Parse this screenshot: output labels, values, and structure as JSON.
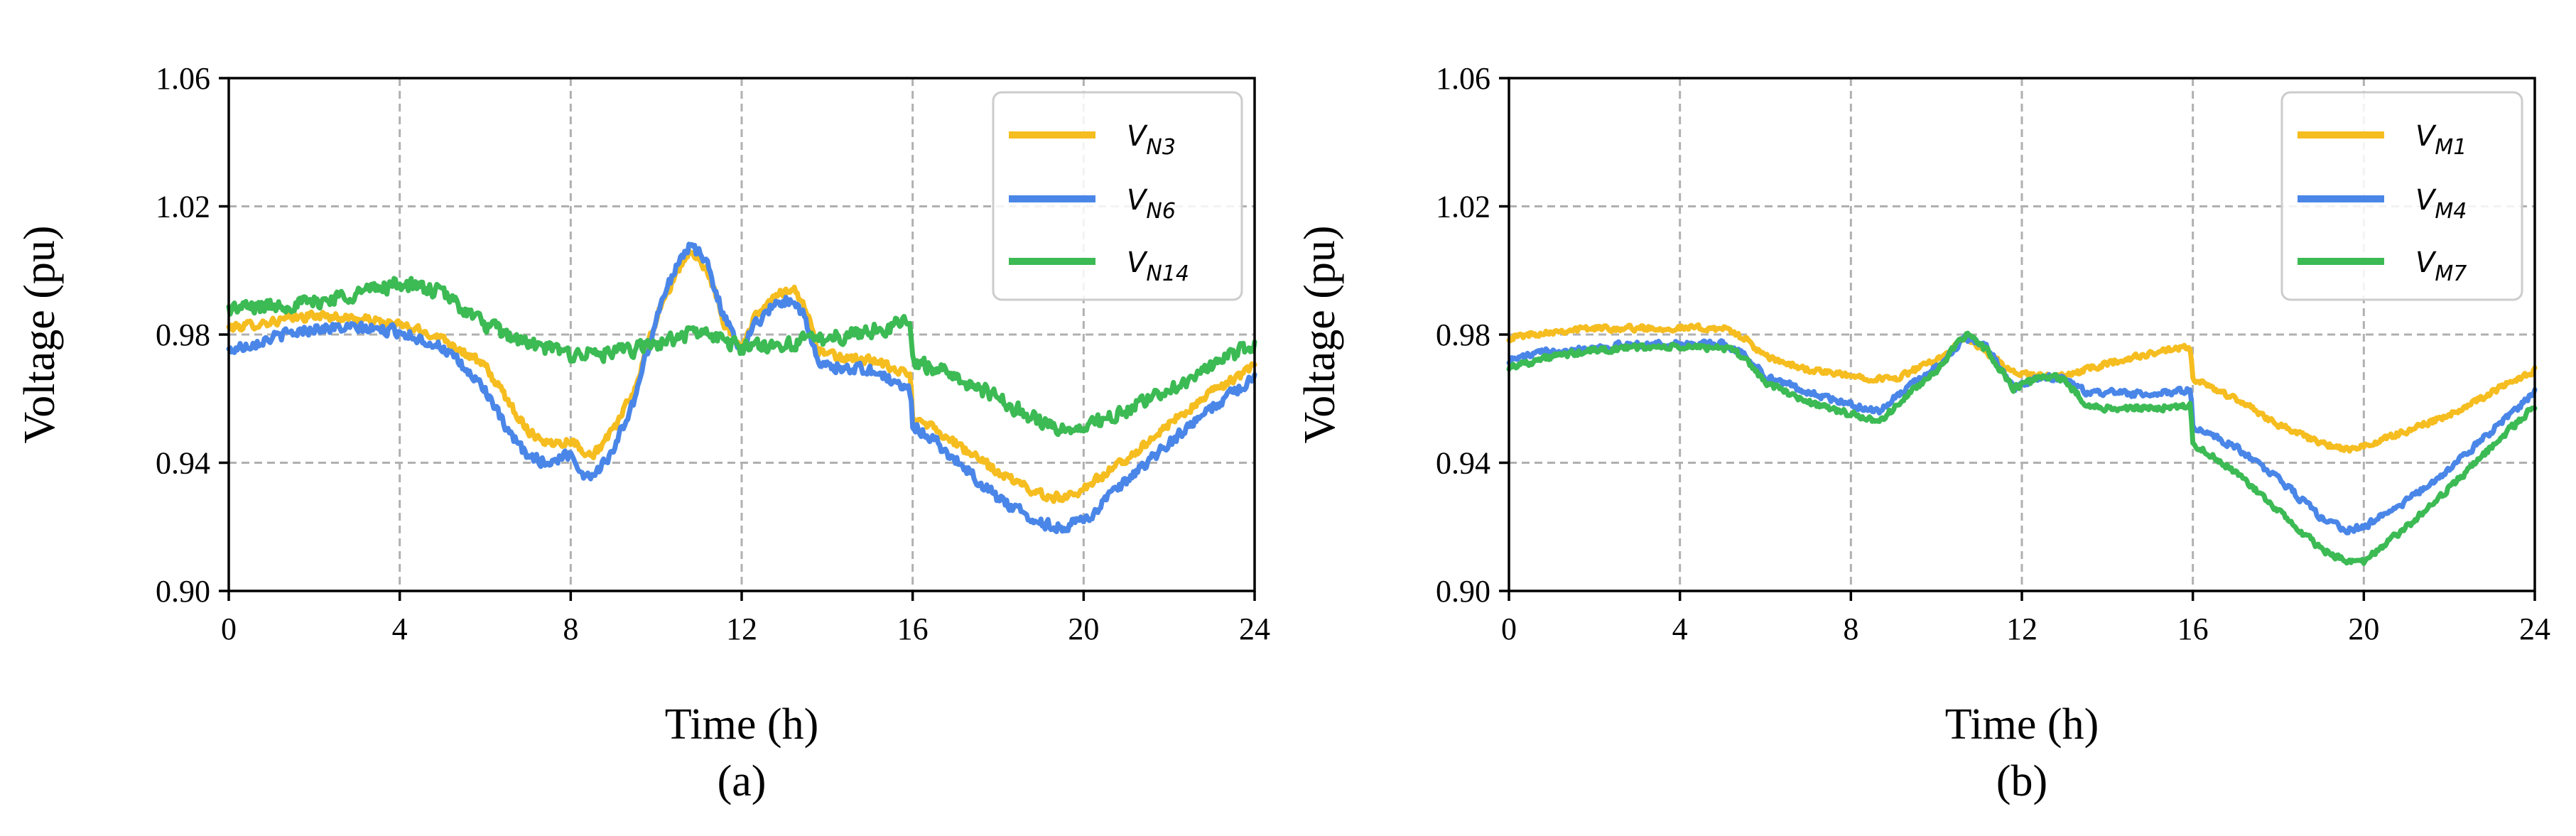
{
  "chart_data": [
    {
      "type": "line",
      "panel_label": "(a)",
      "xlabel": "Time (h)",
      "ylabel": "Voltage (pu)",
      "xlim": [
        0,
        24
      ],
      "ylim": [
        0.9,
        1.06
      ],
      "xticks": [
        "0",
        "4",
        "8",
        "12",
        "16",
        "20",
        "24"
      ],
      "yticks": [
        "0.90",
        "0.94",
        "0.98",
        "1.02",
        "1.06"
      ],
      "grid": true,
      "legend_position": "top-right",
      "series": [
        {
          "name": "V_N3",
          "base": "V",
          "sub": "N3",
          "color": "#f5bd1f",
          "noise": 0.0018,
          "points": [
            [
              0,
              0.982
            ],
            [
              1,
              0.984
            ],
            [
              2,
              0.986
            ],
            [
              3,
              0.985
            ],
            [
              4,
              0.983
            ],
            [
              5,
              0.979
            ],
            [
              6,
              0.97
            ],
            [
              6.5,
              0.96
            ],
            [
              7,
              0.95
            ],
            [
              7.5,
              0.946
            ],
            [
              8,
              0.947
            ],
            [
              8.5,
              0.942
            ],
            [
              9,
              0.95
            ],
            [
              9.5,
              0.963
            ],
            [
              10,
              0.985
            ],
            [
              10.5,
              1.0
            ],
            [
              10.8,
              1.006
            ],
            [
              11.2,
              1.0
            ],
            [
              11.6,
              0.983
            ],
            [
              12,
              0.976
            ],
            [
              12.3,
              0.985
            ],
            [
              12.8,
              0.992
            ],
            [
              13.2,
              0.995
            ],
            [
              13.5,
              0.988
            ],
            [
              13.8,
              0.975
            ],
            [
              14.2,
              0.973
            ],
            [
              15,
              0.972
            ],
            [
              15.6,
              0.969
            ],
            [
              15.95,
              0.967
            ],
            [
              16,
              0.955
            ],
            [
              16.5,
              0.951
            ],
            [
              17,
              0.946
            ],
            [
              18,
              0.937
            ],
            [
              19,
              0.93
            ],
            [
              19.5,
              0.929
            ],
            [
              20,
              0.932
            ],
            [
              21,
              0.941
            ],
            [
              22,
              0.952
            ],
            [
              23,
              0.962
            ],
            [
              24,
              0.97
            ]
          ]
        },
        {
          "name": "V_N6",
          "base": "V",
          "sub": "N6",
          "color": "#4a86e8",
          "noise": 0.0022,
          "points": [
            [
              0,
              0.975
            ],
            [
              1,
              0.979
            ],
            [
              2,
              0.982
            ],
            [
              3,
              0.982
            ],
            [
              4,
              0.981
            ],
            [
              5,
              0.976
            ],
            [
              6,
              0.963
            ],
            [
              6.5,
              0.95
            ],
            [
              7,
              0.942
            ],
            [
              7.5,
              0.94
            ],
            [
              8,
              0.943
            ],
            [
              8.3,
              0.936
            ],
            [
              8.6,
              0.937
            ],
            [
              9,
              0.944
            ],
            [
              9.5,
              0.96
            ],
            [
              10,
              0.985
            ],
            [
              10.5,
              1.003
            ],
            [
              10.8,
              1.008
            ],
            [
              11.2,
              1.002
            ],
            [
              11.6,
              0.985
            ],
            [
              12,
              0.975
            ],
            [
              12.3,
              0.983
            ],
            [
              12.8,
              0.99
            ],
            [
              13.2,
              0.991
            ],
            [
              13.5,
              0.985
            ],
            [
              13.8,
              0.97
            ],
            [
              14.2,
              0.97
            ],
            [
              15,
              0.969
            ],
            [
              15.6,
              0.965
            ],
            [
              15.95,
              0.962
            ],
            [
              16,
              0.952
            ],
            [
              16.5,
              0.947
            ],
            [
              17,
              0.941
            ],
            [
              18,
              0.929
            ],
            [
              19,
              0.921
            ],
            [
              19.5,
              0.92
            ],
            [
              20,
              0.922
            ],
            [
              21,
              0.934
            ],
            [
              22,
              0.946
            ],
            [
              23,
              0.957
            ],
            [
              24,
              0.967
            ]
          ]
        },
        {
          "name": "V_N14",
          "base": "V",
          "sub": "N14",
          "color": "#3cba54",
          "noise": 0.003,
          "points": [
            [
              0,
              0.988
            ],
            [
              1,
              0.989
            ],
            [
              2,
              0.99
            ],
            [
              3,
              0.993
            ],
            [
              4,
              0.996
            ],
            [
              5,
              0.993
            ],
            [
              6,
              0.983
            ],
            [
              7,
              0.977
            ],
            [
              8,
              0.974
            ],
            [
              9,
              0.974
            ],
            [
              10,
              0.977
            ],
            [
              11,
              0.981
            ],
            [
              12,
              0.976
            ],
            [
              13,
              0.977
            ],
            [
              14,
              0.979
            ],
            [
              15,
              0.981
            ],
            [
              15.95,
              0.984
            ],
            [
              16,
              0.972
            ],
            [
              17,
              0.967
            ],
            [
              18,
              0.96
            ],
            [
              19,
              0.953
            ],
            [
              19.5,
              0.95
            ],
            [
              20,
              0.951
            ],
            [
              21,
              0.956
            ],
            [
              22,
              0.963
            ],
            [
              23,
              0.97
            ],
            [
              24,
              0.977
            ]
          ]
        }
      ]
    },
    {
      "type": "line",
      "panel_label": "(b)",
      "xlabel": "Time (h)",
      "ylabel": "Voltage (pu)",
      "xlim": [
        0,
        24
      ],
      "ylim": [
        0.9,
        1.06
      ],
      "xticks": [
        "0",
        "4",
        "8",
        "12",
        "16",
        "20",
        "24"
      ],
      "yticks": [
        "0.90",
        "0.94",
        "0.98",
        "1.02",
        "1.06"
      ],
      "grid": true,
      "legend_position": "top-right",
      "series": [
        {
          "name": "V_M1",
          "base": "V",
          "sub": "M1",
          "color": "#f5bd1f",
          "noise": 0.0012,
          "points": [
            [
              0,
              0.979
            ],
            [
              1,
              0.981
            ],
            [
              2,
              0.982
            ],
            [
              3,
              0.982
            ],
            [
              4,
              0.982
            ],
            [
              5,
              0.982
            ],
            [
              5.5,
              0.979
            ],
            [
              6,
              0.973
            ],
            [
              7,
              0.969
            ],
            [
              8,
              0.967
            ],
            [
              9,
              0.966
            ],
            [
              10,
              0.972
            ],
            [
              10.7,
              0.979
            ],
            [
              11.2,
              0.974
            ],
            [
              11.8,
              0.968
            ],
            [
              12.5,
              0.967
            ],
            [
              13,
              0.967
            ],
            [
              14,
              0.971
            ],
            [
              15,
              0.974
            ],
            [
              15.95,
              0.976
            ],
            [
              16,
              0.966
            ],
            [
              17,
              0.96
            ],
            [
              18,
              0.952
            ],
            [
              19,
              0.946
            ],
            [
              19.6,
              0.944
            ],
            [
              20,
              0.945
            ],
            [
              21,
              0.95
            ],
            [
              22,
              0.955
            ],
            [
              23,
              0.962
            ],
            [
              24,
              0.969
            ]
          ]
        },
        {
          "name": "V_M4",
          "base": "V",
          "sub": "M4",
          "color": "#4a86e8",
          "noise": 0.0013,
          "points": [
            [
              0,
              0.972
            ],
            [
              1,
              0.975
            ],
            [
              2,
              0.976
            ],
            [
              3,
              0.977
            ],
            [
              4,
              0.977
            ],
            [
              5,
              0.977
            ],
            [
              5.5,
              0.974
            ],
            [
              6,
              0.967
            ],
            [
              7,
              0.962
            ],
            [
              8,
              0.958
            ],
            [
              8.7,
              0.956
            ],
            [
              9,
              0.96
            ],
            [
              10,
              0.97
            ],
            [
              10.7,
              0.979
            ],
            [
              11.2,
              0.976
            ],
            [
              11.8,
              0.963
            ],
            [
              12.5,
              0.967
            ],
            [
              13,
              0.966
            ],
            [
              13.5,
              0.962
            ],
            [
              14,
              0.962
            ],
            [
              15,
              0.961
            ],
            [
              15.95,
              0.963
            ],
            [
              16,
              0.951
            ],
            [
              17,
              0.945
            ],
            [
              18,
              0.935
            ],
            [
              19,
              0.923
            ],
            [
              19.6,
              0.919
            ],
            [
              20,
              0.92
            ],
            [
              21,
              0.928
            ],
            [
              22,
              0.938
            ],
            [
              23,
              0.95
            ],
            [
              24,
              0.962
            ]
          ]
        },
        {
          "name": "V_M7",
          "base": "V",
          "sub": "M7",
          "color": "#3cba54",
          "noise": 0.0013,
          "points": [
            [
              0,
              0.97
            ],
            [
              1,
              0.973
            ],
            [
              2,
              0.975
            ],
            [
              3,
              0.976
            ],
            [
              4,
              0.976
            ],
            [
              5,
              0.976
            ],
            [
              5.5,
              0.973
            ],
            [
              6,
              0.965
            ],
            [
              7,
              0.959
            ],
            [
              8,
              0.955
            ],
            [
              8.7,
              0.953
            ],
            [
              9,
              0.957
            ],
            [
              10,
              0.969
            ],
            [
              10.7,
              0.98
            ],
            [
              11.2,
              0.975
            ],
            [
              11.8,
              0.963
            ],
            [
              12.5,
              0.967
            ],
            [
              13,
              0.966
            ],
            [
              13.5,
              0.958
            ],
            [
              14,
              0.957
            ],
            [
              15,
              0.957
            ],
            [
              15.95,
              0.958
            ],
            [
              16,
              0.946
            ],
            [
              17,
              0.937
            ],
            [
              18,
              0.925
            ],
            [
              19,
              0.913
            ],
            [
              19.6,
              0.909
            ],
            [
              20,
              0.909
            ],
            [
              21,
              0.92
            ],
            [
              22,
              0.932
            ],
            [
              23,
              0.945
            ],
            [
              24,
              0.958
            ]
          ]
        }
      ]
    }
  ]
}
